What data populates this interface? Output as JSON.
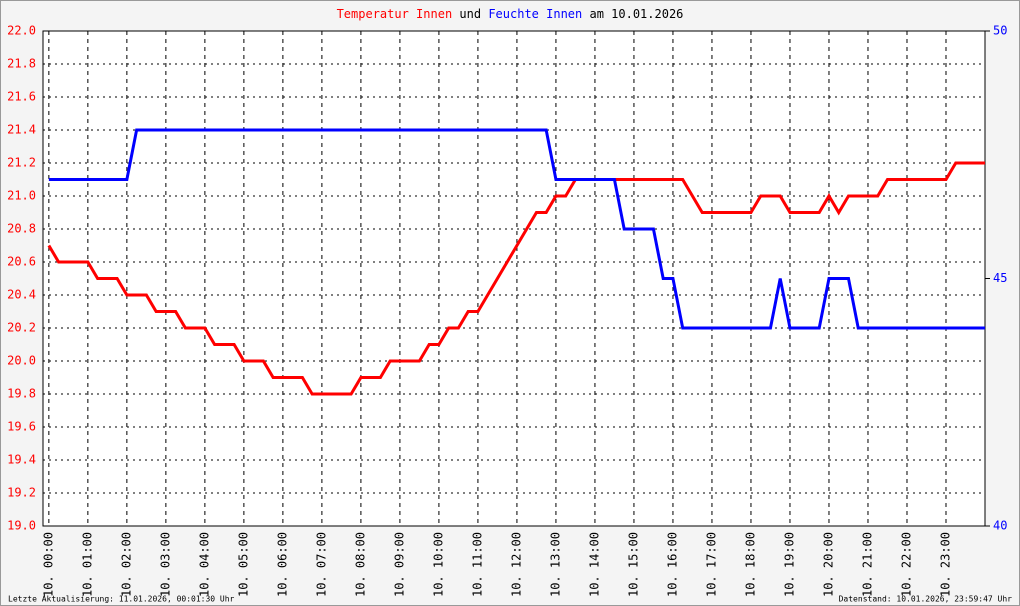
{
  "chart_data": {
    "type": "line",
    "title": {
      "connector": "und",
      "date": "am 10.01.2026"
    },
    "footer_left": "Letzte Aktualisierung: 11.01.2026, 00:01:30 Uhr",
    "footer_right": "Datenstand: 10.01.2026, 23:59:47 Uhr",
    "x": [
      0,
      0.25,
      0.5,
      0.75,
      1,
      1.25,
      1.5,
      1.75,
      2,
      2.25,
      2.5,
      2.75,
      3,
      3.25,
      3.5,
      3.75,
      4,
      4.25,
      4.5,
      4.75,
      5,
      5.25,
      5.5,
      5.75,
      6,
      6.25,
      6.5,
      6.75,
      7,
      7.25,
      7.5,
      7.75,
      8,
      8.25,
      8.5,
      8.75,
      9,
      9.25,
      9.5,
      9.75,
      10,
      10.25,
      10.5,
      10.75,
      11,
      11.25,
      11.5,
      11.75,
      12,
      12.25,
      12.5,
      12.75,
      13,
      13.25,
      13.5,
      13.75,
      14,
      14.25,
      14.5,
      14.75,
      15,
      15.25,
      15.5,
      15.75,
      16,
      16.25,
      16.5,
      16.75,
      17,
      17.25,
      17.5,
      17.75,
      18,
      18.25,
      18.5,
      18.75,
      19,
      19.25,
      19.5,
      19.75,
      20,
      20.25,
      20.5,
      20.75,
      21,
      21.25,
      21.5,
      21.75,
      22,
      22.25,
      22.5,
      22.75,
      23,
      23.25,
      23.5,
      23.75,
      24
    ],
    "series": [
      {
        "name": "Temperatur Innen",
        "color": "#ff0000",
        "axis": "y",
        "values": [
          20.7,
          20.6,
          20.6,
          20.6,
          20.6,
          20.5,
          20.5,
          20.5,
          20.4,
          20.4,
          20.4,
          20.3,
          20.3,
          20.3,
          20.2,
          20.2,
          20.2,
          20.1,
          20.1,
          20.1,
          20.0,
          20.0,
          20.0,
          19.9,
          19.9,
          19.9,
          19.9,
          19.8,
          19.8,
          19.8,
          19.8,
          19.8,
          19.9,
          19.9,
          19.9,
          20.0,
          20.0,
          20.0,
          20.0,
          20.1,
          20.1,
          20.2,
          20.2,
          20.3,
          20.3,
          20.4,
          20.5,
          20.6,
          20.7,
          20.8,
          20.9,
          20.9,
          21.0,
          21.0,
          21.1,
          21.1,
          21.1,
          21.1,
          21.1,
          21.1,
          21.1,
          21.1,
          21.1,
          21.1,
          21.1,
          21.1,
          21.0,
          20.9,
          20.9,
          20.9,
          20.9,
          20.9,
          20.9,
          21.0,
          21.0,
          21.0,
          20.9,
          20.9,
          20.9,
          20.9,
          21.0,
          20.9,
          21.0,
          21.0,
          21.0,
          21.0,
          21.1,
          21.1,
          21.1,
          21.1,
          21.1,
          21.1,
          21.1,
          21.2,
          21.2,
          21.2,
          21.2
        ]
      },
      {
        "name": "Feuchte Innen",
        "color": "#0000ff",
        "axis": "y2",
        "values": [
          47,
          47,
          47,
          47,
          47,
          47,
          47,
          47,
          47,
          48,
          48,
          48,
          48,
          48,
          48,
          48,
          48,
          48,
          48,
          48,
          48,
          48,
          48,
          48,
          48,
          48,
          48,
          48,
          48,
          48,
          48,
          48,
          48,
          48,
          48,
          48,
          48,
          48,
          48,
          48,
          48,
          48,
          48,
          48,
          48,
          48,
          48,
          48,
          48,
          48,
          48,
          48,
          47,
          47,
          47,
          47,
          47,
          47,
          47,
          46,
          46,
          46,
          46,
          45,
          45,
          44,
          44,
          44,
          44,
          44,
          44,
          44,
          44,
          44,
          44,
          45,
          44,
          44,
          44,
          44,
          45,
          45,
          45,
          44,
          44,
          44,
          44,
          44,
          44,
          44,
          44,
          44,
          44,
          44,
          44,
          44,
          44
        ]
      }
    ],
    "xlim": [
      -0.15,
      24
    ],
    "xticks": [
      {
        "value": 0,
        "label": "10. 00:00"
      },
      {
        "value": 1,
        "label": "10. 01:00"
      },
      {
        "value": 2,
        "label": "10. 02:00"
      },
      {
        "value": 3,
        "label": "10. 03:00"
      },
      {
        "value": 4,
        "label": "10. 04:00"
      },
      {
        "value": 5,
        "label": "10. 05:00"
      },
      {
        "value": 6,
        "label": "10. 06:00"
      },
      {
        "value": 7,
        "label": "10. 07:00"
      },
      {
        "value": 8,
        "label": "10. 08:00"
      },
      {
        "value": 9,
        "label": "10. 09:00"
      },
      {
        "value": 10,
        "label": "10. 10:00"
      },
      {
        "value": 11,
        "label": "10. 11:00"
      },
      {
        "value": 12,
        "label": "10. 12:00"
      },
      {
        "value": 13,
        "label": "10. 13:00"
      },
      {
        "value": 14,
        "label": "10. 14:00"
      },
      {
        "value": 15,
        "label": "10. 15:00"
      },
      {
        "value": 16,
        "label": "10. 16:00"
      },
      {
        "value": 17,
        "label": "10. 17:00"
      },
      {
        "value": 18,
        "label": "10. 18:00"
      },
      {
        "value": 19,
        "label": "10. 19:00"
      },
      {
        "value": 20,
        "label": "10. 20:00"
      },
      {
        "value": 21,
        "label": "10. 21:00"
      },
      {
        "value": 22,
        "label": "10. 22:00"
      },
      {
        "value": 23,
        "label": "10. 23:00"
      }
    ],
    "ylim": [
      19,
      22
    ],
    "yticks": [
      {
        "value": 19,
        "label": "19.0"
      },
      19.2,
      19.4,
      19.6,
      19.8,
      {
        "value": 20,
        "label": "20.0"
      },
      20.2,
      20.4,
      20.6,
      20.8,
      {
        "value": 21,
        "label": "21.0"
      },
      21.2,
      21.4,
      21.6,
      21.8,
      {
        "value": 22,
        "label": "22.0"
      }
    ],
    "y2lim": [
      40,
      50
    ],
    "y2ticks": [
      40,
      45,
      50
    ],
    "grid": true
  }
}
